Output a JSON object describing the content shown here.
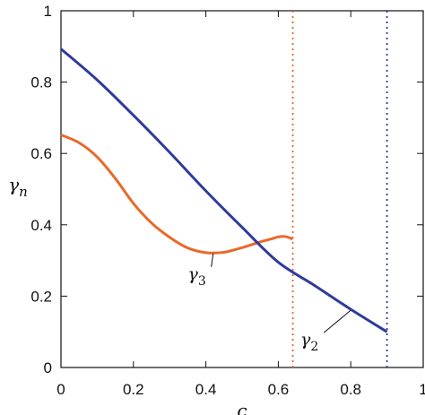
{
  "chart_data": {
    "type": "line",
    "title": "",
    "xlabel": "c",
    "ylabel": "γn",
    "xlim": [
      0,
      1
    ],
    "ylim": [
      0,
      1
    ],
    "xticks": [
      0,
      0.2,
      0.4,
      0.6,
      0.8,
      1
    ],
    "yticks": [
      0,
      0.2,
      0.4,
      0.6,
      0.8,
      1
    ],
    "xtick_labels": [
      "0",
      "0.2",
      "0.4",
      "0.6",
      "0.8",
      "1"
    ],
    "ytick_labels": [
      "0",
      "0.2",
      "0.4",
      "0.6",
      "0.8",
      "1"
    ],
    "grid": false,
    "legend": "none",
    "series": [
      {
        "name": "γ3",
        "color": "#e8692a",
        "x": [
          0.0,
          0.05,
          0.1,
          0.15,
          0.2,
          0.25,
          0.3,
          0.35,
          0.4,
          0.45,
          0.5,
          0.55,
          0.58,
          0.6,
          0.62,
          0.64
        ],
        "y": [
          0.652,
          0.63,
          0.59,
          0.53,
          0.46,
          0.405,
          0.365,
          0.335,
          0.322,
          0.323,
          0.336,
          0.352,
          0.36,
          0.366,
          0.367,
          0.36
        ]
      },
      {
        "name": "γ2",
        "color": "#2e3b9c",
        "x": [
          0.0,
          0.1,
          0.2,
          0.3,
          0.4,
          0.5,
          0.6,
          0.7,
          0.8,
          0.9
        ],
        "y": [
          0.893,
          0.806,
          0.707,
          0.603,
          0.495,
          0.393,
          0.295,
          0.23,
          0.163,
          0.1
        ]
      }
    ],
    "vlines": [
      {
        "x": 0.64,
        "color": "#e8692a",
        "style": "dotted"
      },
      {
        "x": 0.9,
        "color": "#2e3b9c",
        "style": "dotted"
      }
    ],
    "annotations": [
      {
        "text": "γ3",
        "series": "γ3",
        "pointer_at": [
          0.42,
          0.322
        ]
      },
      {
        "text": "γ2",
        "series": "γ2",
        "pointer_at": [
          0.8,
          0.163
        ]
      }
    ]
  }
}
